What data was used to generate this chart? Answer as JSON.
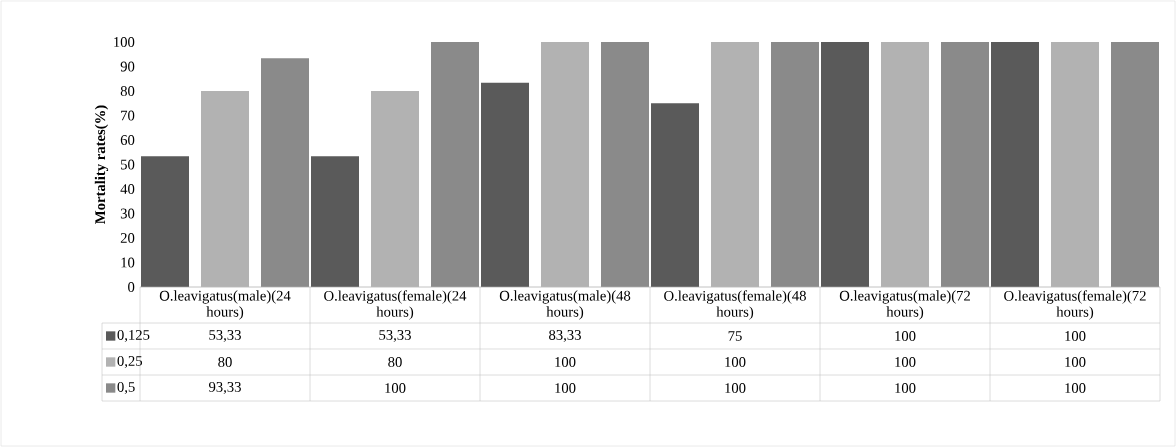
{
  "chart_data": {
    "type": "bar",
    "ylabel": "Mortality rates(%)",
    "categories": [
      "O.leavigatus(male)(24 hours)",
      "O.leavigatus(female)(24 hours)",
      "O.leavigatus(male)(48 hours)",
      "O.leavigatus(female)(48 hours)",
      "O.leavigatus(male)(72 hours)",
      "O.leavigatus(female)(72 hours)"
    ],
    "series": [
      {
        "name": "0,125",
        "color": "#5a5a5a",
        "values": [
          53.33,
          53.33,
          83.33,
          75,
          100,
          100
        ],
        "value_labels": [
          "53,33",
          "53,33",
          "83,33",
          "75",
          "100",
          "100"
        ]
      },
      {
        "name": "0,25",
        "color": "#b2b2b2",
        "values": [
          80,
          80,
          100,
          100,
          100,
          100
        ],
        "value_labels": [
          "80",
          "80",
          "100",
          "100",
          "100",
          "100"
        ]
      },
      {
        "name": "0,5",
        "color": "#8a8a8a",
        "values": [
          93.33,
          100,
          100,
          100,
          100,
          100
        ],
        "value_labels": [
          "93,33",
          "100",
          "100",
          "100",
          "100",
          "100"
        ]
      }
    ],
    "ylim": [
      0,
      100
    ],
    "yticks": [
      0,
      10,
      20,
      30,
      40,
      50,
      60,
      70,
      80,
      90,
      100
    ],
    "grid": false,
    "legend": "bottom"
  }
}
